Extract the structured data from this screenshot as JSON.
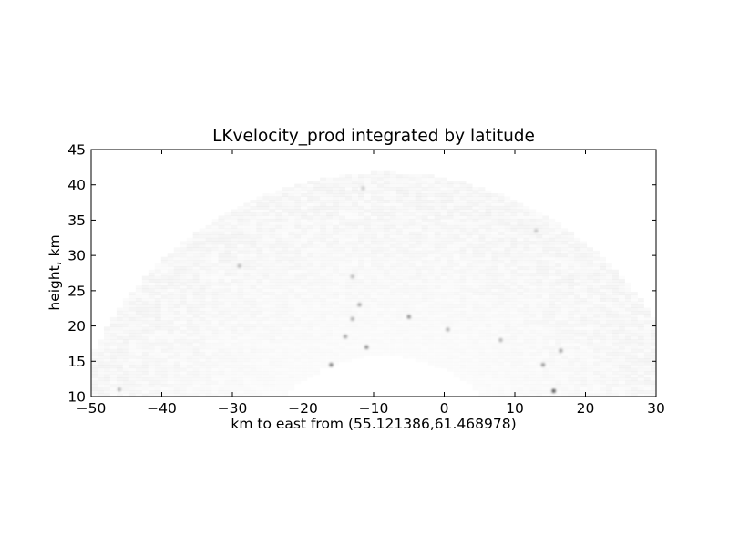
{
  "chart_data": {
    "type": "heatmap",
    "title": "LKvelocity_prod integrated by latitude",
    "xlabel": "km to east from (55.121386,61.468978)",
    "ylabel": "height, km",
    "xlim": [
      -50,
      30
    ],
    "ylim": [
      10,
      45
    ],
    "x_ticks": [
      -50,
      -40,
      -30,
      -20,
      -10,
      0,
      10,
      20,
      30
    ],
    "y_ticks": [
      10,
      15,
      20,
      25,
      30,
      35,
      40,
      45
    ],
    "grid": false,
    "colormap": "gray_r",
    "arc": {
      "center_x": -9,
      "center_y": -4,
      "outer_radius": 46,
      "inner_radius": 20
    },
    "hotspots": [
      {
        "x": -12,
        "y": 23,
        "value": 0.35
      },
      {
        "x": -13,
        "y": 21,
        "value": 0.3
      },
      {
        "x": -11,
        "y": 17,
        "value": 0.45
      },
      {
        "x": -14,
        "y": 18.5,
        "value": 0.35
      },
      {
        "x": -16,
        "y": 14.5,
        "value": 0.5
      },
      {
        "x": -5,
        "y": 21.3,
        "value": 0.45
      },
      {
        "x": 15.5,
        "y": 10.8,
        "value": 0.7
      },
      {
        "x": 14,
        "y": 14.5,
        "value": 0.4
      },
      {
        "x": 16.5,
        "y": 16.5,
        "value": 0.35
      },
      {
        "x": 8,
        "y": 18,
        "value": 0.3
      },
      {
        "x": 0.5,
        "y": 19.5,
        "value": 0.3
      },
      {
        "x": -11.5,
        "y": 39.5,
        "value": 0.2
      },
      {
        "x": -13,
        "y": 27,
        "value": 0.25
      },
      {
        "x": -29,
        "y": 28.5,
        "value": 0.25
      },
      {
        "x": -46,
        "y": 11,
        "value": 0.25
      },
      {
        "x": 13,
        "y": 33.5,
        "value": 0.2
      }
    ],
    "colors": {
      "axes": "#000000",
      "background": "#ffffff"
    }
  }
}
